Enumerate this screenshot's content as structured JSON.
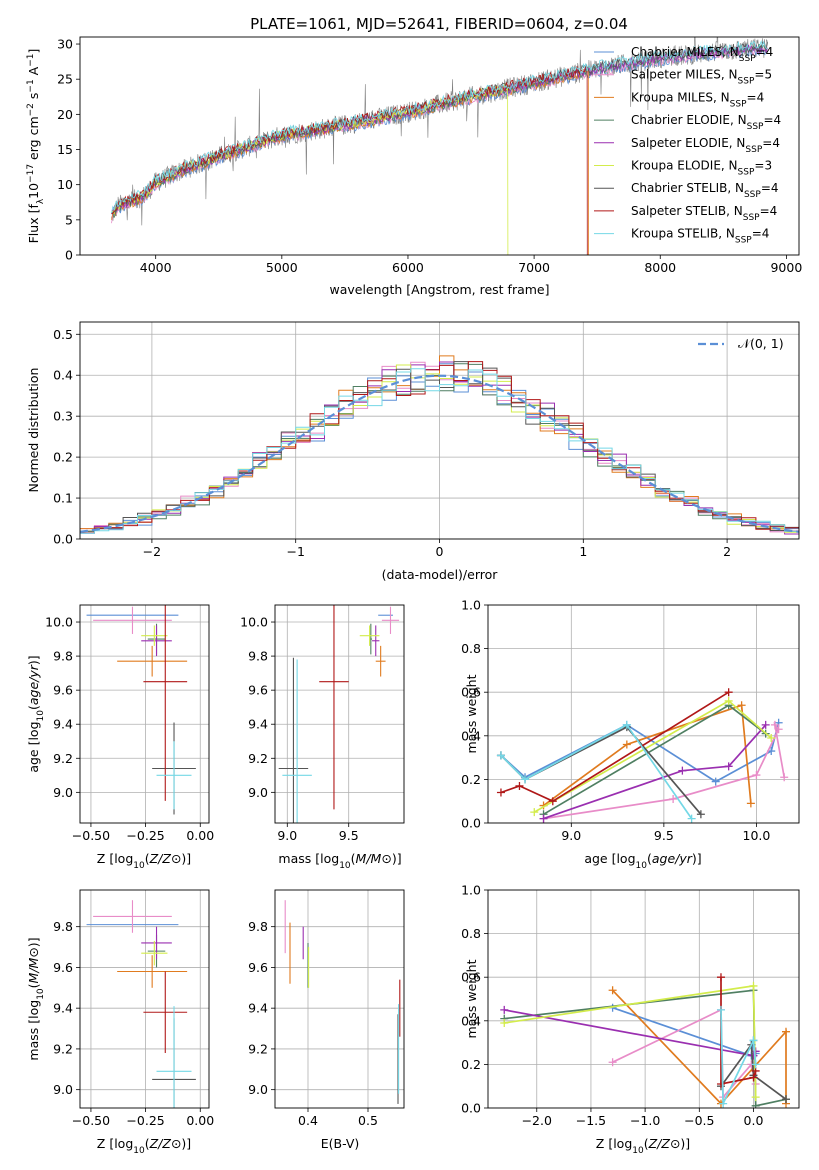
{
  "figure": {
    "title": "PLATE=1061, MJD=52641, FIBERID=0604, z=0.04"
  },
  "colors": {
    "chabrier_miles": "#5b8fd6",
    "salpeter_miles": "#e88cc8",
    "kroupa_miles": "#e07b1f",
    "chabrier_elodie": "#4f7f62",
    "salpeter_elodie": "#9a2fb0",
    "kroupa_elodie": "#d3ec4c",
    "chabrier_stelib": "#555555",
    "salpeter_stelib": "#b01818",
    "kroupa_stelib": "#74d8e6",
    "normal": "#5b8fd6",
    "grid": "#b0b0b0",
    "noisy": "#7f7f7f"
  },
  "chart_data": [
    {
      "type": "line",
      "xlabel": "wavelength [Angstrom, rest frame]",
      "ylabel": "Flux [fλ10^-17 erg cm^-2 s^-1 A^-1]",
      "xlim": [
        3400,
        9100
      ],
      "ylim": [
        0,
        31
      ],
      "xticks": [
        4000,
        5000,
        6000,
        7000,
        8000,
        9000
      ],
      "yticks": [
        0,
        5,
        10,
        15,
        20,
        25,
        30
      ],
      "grid": false,
      "legend_position": "top-right",
      "legend": [
        {
          "label": "Chabrier MILES, N",
          "sub": "SSP",
          "suffix": "=4",
          "color": "chabrier_miles"
        },
        {
          "label": "Salpeter MILES, N",
          "sub": "SSP",
          "suffix": "=5",
          "color": "salpeter_miles"
        },
        {
          "label": "Kroupa MILES, N",
          "sub": "SSP",
          "suffix": "=4",
          "color": "kroupa_miles"
        },
        {
          "label": "Chabrier ELODIE, N",
          "sub": "SSP",
          "suffix": "=4",
          "color": "chabrier_elodie"
        },
        {
          "label": "Salpeter ELODIE, N",
          "sub": "SSP",
          "suffix": "=4",
          "color": "salpeter_elodie"
        },
        {
          "label": "Kroupa ELODIE, N",
          "sub": "SSP",
          "suffix": "=3",
          "color": "kroupa_elodie"
        },
        {
          "label": "Chabrier STELIB, N",
          "sub": "SSP",
          "suffix": "=4",
          "color": "chabrier_stelib"
        },
        {
          "label": "Salpeter STELIB, N",
          "sub": "SSP",
          "suffix": "=4",
          "color": "salpeter_stelib"
        },
        {
          "label": "Kroupa STELIB, N",
          "sub": "SSP",
          "suffix": "=4",
          "color": "kroupa_stelib"
        }
      ],
      "continuum": {
        "x": [
          3650,
          3700,
          3800,
          3900,
          4000,
          4200,
          4500,
          5000,
          5500,
          6000,
          6500,
          7000,
          7500,
          8000,
          8500,
          8850
        ],
        "y": [
          5.5,
          7.0,
          7.6,
          8.3,
          10.3,
          12.0,
          14.0,
          17.0,
          18.5,
          20.3,
          22.5,
          24.5,
          26.5,
          28.0,
          29.0,
          29.5
        ]
      },
      "model_cuts": [
        {
          "series": "kroupa_elodie",
          "x_cut": 6790
        },
        {
          "series": "salpeter_stelib",
          "x_cut": 7420
        },
        {
          "series": "kroupa_miles",
          "x_cut": 7430
        }
      ]
    },
    {
      "type": "bar",
      "title": "",
      "xlabel": "(data-model)/error",
      "ylabel": "Normed distribution",
      "xlim": [
        -2.5,
        2.5
      ],
      "ylim": [
        0,
        0.53
      ],
      "xticks": [
        -2,
        -1,
        0,
        1,
        2
      ],
      "yticks": [
        0.0,
        0.1,
        0.2,
        0.3,
        0.4,
        0.5
      ],
      "grid": true,
      "legend_position": "top-right",
      "bin_width": 0.1,
      "gaussian_legend": "𝒩(0, 1)",
      "gaussian": {
        "mean": 0,
        "sigma": 1
      }
    },
    {
      "type": "scatter",
      "xlabel": "Z [log10(Z/Z⊙)]",
      "ylabel": "age  [log10(age/yr)]",
      "xlim": [
        -0.55,
        0.04
      ],
      "ylim": [
        8.82,
        10.1
      ],
      "xticks": [
        -0.5,
        -0.25,
        0.0
      ],
      "yticks": [
        9.0,
        9.2,
        9.4,
        9.6,
        9.8,
        10.0
      ],
      "points": [
        {
          "s": "chabrier_miles",
          "x": -0.31,
          "xerr": 0.21,
          "y": 10.04,
          "yerr": 0.0
        },
        {
          "s": "salpeter_miles",
          "x": -0.31,
          "xerr": 0.18,
          "y": 10.01,
          "yerr": 0.08
        },
        {
          "s": "kroupa_miles",
          "x": -0.22,
          "xerr": 0.16,
          "y": 9.77,
          "yerr": 0.09
        },
        {
          "s": "chabrier_elodie",
          "x": -0.2,
          "xerr": 0.04,
          "y": 9.9,
          "yerr": 0.09
        },
        {
          "s": "salpeter_elodie",
          "x": -0.2,
          "xerr": 0.07,
          "y": 9.89,
          "yerr": 0.09
        },
        {
          "s": "kroupa_elodie",
          "x": -0.21,
          "xerr": 0.06,
          "y": 9.92,
          "yerr": 0.06
        },
        {
          "s": "chabrier_stelib",
          "x": -0.12,
          "xerr": 0.1,
          "y": 9.14,
          "yerr": 0.27
        },
        {
          "s": "salpeter_stelib",
          "x": -0.16,
          "xerr": 0.1,
          "y": 9.65,
          "yerr": 0.7
        },
        {
          "s": "kroupa_stelib",
          "x": -0.12,
          "xerr": 0.08,
          "y": 9.1,
          "yerr": 0.2
        }
      ]
    },
    {
      "type": "scatter",
      "xlabel": "mass [log10(M/M⊙)]",
      "ylabel": "",
      "xlim": [
        8.9,
        9.95
      ],
      "ylim": [
        8.82,
        10.1
      ],
      "xticks": [
        9.0,
        9.5
      ],
      "yticks": [
        9.0,
        9.2,
        9.4,
        9.6,
        9.8,
        10.0
      ],
      "points": [
        {
          "s": "chabrier_miles",
          "x": 9.8,
          "xerr": 0.06,
          "y": 10.04,
          "yerr": 0.0
        },
        {
          "s": "salpeter_miles",
          "x": 9.84,
          "xerr": 0.07,
          "y": 10.01,
          "yerr": 0.08
        },
        {
          "s": "kroupa_miles",
          "x": 9.76,
          "xerr": 0.04,
          "y": 9.77,
          "yerr": 0.09
        },
        {
          "s": "chabrier_elodie",
          "x": 9.68,
          "xerr": 0.01,
          "y": 9.9,
          "yerr": 0.09
        },
        {
          "s": "salpeter_elodie",
          "x": 9.72,
          "xerr": 0.03,
          "y": 9.89,
          "yerr": 0.09
        },
        {
          "s": "kroupa_elodie",
          "x": 9.67,
          "xerr": 0.08,
          "y": 9.92,
          "yerr": 0.06
        },
        {
          "s": "chabrier_stelib",
          "x": 9.05,
          "xerr": 0.12,
          "y": 9.14,
          "yerr": 0.65
        },
        {
          "s": "salpeter_stelib",
          "x": 9.38,
          "xerr": 0.12,
          "y": 9.65,
          "yerr": 0.75
        },
        {
          "s": "kroupa_stelib",
          "x": 9.08,
          "xerr": 0.12,
          "y": 9.1,
          "yerr": 0.68
        }
      ]
    },
    {
      "type": "line",
      "xlabel": "age  [log10(age/yr)]",
      "ylabel": "mass weight",
      "xlim": [
        8.55,
        10.23
      ],
      "ylim": [
        0,
        1.0
      ],
      "xticks": [
        9.0,
        9.5,
        10.0
      ],
      "yticks": [
        0.0,
        0.2,
        0.4,
        0.6,
        0.8,
        1.0
      ],
      "grid": true,
      "series": [
        {
          "s": "chabrier_miles",
          "x": [
            8.62,
            8.75,
            9.3,
            9.78,
            10.08,
            10.12
          ],
          "y": [
            0.31,
            0.21,
            0.45,
            0.19,
            0.33,
            0.46
          ]
        },
        {
          "s": "salpeter_miles",
          "x": [
            8.85,
            9.55,
            10.0,
            10.12,
            10.1,
            10.15
          ],
          "y": [
            0.02,
            0.11,
            0.22,
            0.43,
            0.45,
            0.21
          ]
        },
        {
          "s": "kroupa_miles",
          "x": [
            8.85,
            9.3,
            9.92,
            9.97
          ],
          "y": [
            0.08,
            0.36,
            0.54,
            0.09
          ]
        },
        {
          "s": "chabrier_elodie",
          "x": [
            8.85,
            9.85,
            10.05
          ],
          "y": [
            0.04,
            0.54,
            0.41
          ]
        },
        {
          "s": "salpeter_elodie",
          "x": [
            8.85,
            9.6,
            9.85,
            10.05
          ],
          "y": [
            0.02,
            0.24,
            0.26,
            0.45
          ]
        },
        {
          "s": "kroupa_elodie",
          "x": [
            8.8,
            9.85,
            10.08
          ],
          "y": [
            0.05,
            0.56,
            0.39
          ]
        },
        {
          "s": "chabrier_stelib",
          "x": [
            8.62,
            8.75,
            9.3,
            9.7
          ],
          "y": [
            0.31,
            0.2,
            0.44,
            0.04
          ]
        },
        {
          "s": "salpeter_stelib",
          "x": [
            8.62,
            8.72,
            8.9,
            9.85
          ],
          "y": [
            0.14,
            0.17,
            0.1,
            0.6
          ]
        },
        {
          "s": "kroupa_stelib",
          "x": [
            8.62,
            8.75,
            9.3,
            9.65
          ],
          "y": [
            0.31,
            0.2,
            0.45,
            0.02
          ]
        }
      ]
    },
    {
      "type": "scatter",
      "xlabel": "Z [log10(Z/Z⊙)]",
      "ylabel": "mass [log10(M/M⊙)]",
      "xlim": [
        -0.55,
        0.04
      ],
      "ylim": [
        8.91,
        9.98
      ],
      "xticks": [
        -0.5,
        -0.25,
        0.0
      ],
      "yticks": [
        9.0,
        9.2,
        9.4,
        9.6,
        9.8
      ],
      "points": [
        {
          "s": "chabrier_miles",
          "x": -0.31,
          "xerr": 0.21,
          "y": 9.81,
          "yerr": 0.0
        },
        {
          "s": "salpeter_miles",
          "x": -0.31,
          "xerr": 0.18,
          "y": 9.85,
          "yerr": 0.08
        },
        {
          "s": "kroupa_miles",
          "x": -0.22,
          "xerr": 0.16,
          "y": 9.58,
          "yerr": 0.08
        },
        {
          "s": "chabrier_elodie",
          "x": -0.2,
          "xerr": 0.04,
          "y": 9.68,
          "yerr": 0.08
        },
        {
          "s": "salpeter_elodie",
          "x": -0.2,
          "xerr": 0.07,
          "y": 9.72,
          "yerr": 0.08
        },
        {
          "s": "kroupa_elodie",
          "x": -0.21,
          "xerr": 0.06,
          "y": 9.67,
          "yerr": 0.06
        },
        {
          "s": "chabrier_stelib",
          "x": -0.12,
          "xerr": 0.1,
          "y": 9.05,
          "yerr": 0.3
        },
        {
          "s": "salpeter_stelib",
          "x": -0.16,
          "xerr": 0.1,
          "y": 9.38,
          "yerr": 0.2
        },
        {
          "s": "kroupa_stelib",
          "x": -0.12,
          "xerr": 0.08,
          "y": 9.09,
          "yerr": 0.32
        }
      ]
    },
    {
      "type": "scatter",
      "xlabel": "E(B-V)",
      "ylabel": "",
      "xlim": [
        0.345,
        0.56
      ],
      "ylim": [
        8.91,
        9.98
      ],
      "xticks": [
        0.4,
        0.5
      ],
      "yticks": [
        9.0,
        9.2,
        9.4,
        9.6,
        9.8
      ],
      "points": [
        {
          "s": "salpeter_miles",
          "x": 0.362,
          "xerr": 0.0,
          "y": 9.8,
          "yerr": 0.13
        },
        {
          "s": "kroupa_miles",
          "x": 0.37,
          "xerr": 0.0,
          "y": 9.67,
          "yerr": 0.15
        },
        {
          "s": "salpeter_elodie",
          "x": 0.392,
          "xerr": 0.0,
          "y": 9.72,
          "yerr": 0.08
        },
        {
          "s": "chabrier_elodie",
          "x": 0.4,
          "xerr": 0.0,
          "y": 9.61,
          "yerr": 0.11
        },
        {
          "s": "kroupa_elodie",
          "x": 0.401,
          "xerr": 0.0,
          "y": 9.6,
          "yerr": 0.1
        },
        {
          "s": "salpeter_stelib",
          "x": 0.553,
          "xerr": 0.0,
          "y": 9.4,
          "yerr": 0.14
        },
        {
          "s": "chabrier_stelib",
          "x": 0.55,
          "xerr": 0.0,
          "y": 9.15,
          "yerr": 0.22
        },
        {
          "s": "kroupa_stelib",
          "x": 0.551,
          "xerr": 0.0,
          "y": 9.2,
          "yerr": 0.22
        }
      ]
    },
    {
      "type": "line",
      "xlabel": "Z [log10(Z/Z⊙)]",
      "ylabel": "mass weight",
      "xlim": [
        -2.45,
        0.42
      ],
      "ylim": [
        0,
        1.0
      ],
      "xticks": [
        -2.0,
        -1.5,
        -1.0,
        -0.5,
        0.0
      ],
      "yticks": [
        0.0,
        0.2,
        0.4,
        0.6,
        0.8,
        1.0
      ],
      "grid": true,
      "series": [
        {
          "s": "chabrier_miles",
          "x": [
            -1.3,
            -0.02,
            0.0,
            0.02
          ],
          "y": [
            0.46,
            0.24,
            0.31,
            0.25
          ]
        },
        {
          "s": "salpeter_miles",
          "x": [
            -1.3,
            -0.3,
            -0.28,
            -0.02,
            0.02
          ],
          "y": [
            0.21,
            0.45,
            0.05,
            0.2,
            0.11
          ]
        },
        {
          "s": "kroupa_miles",
          "x": [
            -1.3,
            -0.3,
            0.3,
            0.3
          ],
          "y": [
            0.54,
            0.02,
            0.35,
            0.02
          ]
        },
        {
          "s": "chabrier_elodie",
          "x": [
            -2.3,
            0.0,
            0.02,
            0.3
          ],
          "y": [
            0.41,
            0.54,
            0.01,
            0.04
          ]
        },
        {
          "s": "salpeter_elodie",
          "x": [
            -2.3,
            0.0,
            0.02
          ],
          "y": [
            0.45,
            0.24,
            0.26
          ]
        },
        {
          "s": "kroupa_elodie",
          "x": [
            -2.3,
            0.0,
            0.02
          ],
          "y": [
            0.39,
            0.56,
            0.05
          ]
        },
        {
          "s": "chabrier_stelib",
          "x": [
            -0.3,
            -0.02,
            0.0,
            0.3
          ],
          "y": [
            0.1,
            0.29,
            0.15,
            0.04
          ]
        },
        {
          "s": "salpeter_stelib",
          "x": [
            -0.3,
            -0.3,
            0.0,
            0.02
          ],
          "y": [
            0.6,
            0.11,
            0.14,
            0.17
          ]
        },
        {
          "s": "kroupa_stelib",
          "x": [
            -0.3,
            -0.28,
            0.0,
            0.02
          ],
          "y": [
            0.45,
            0.02,
            0.31,
            0.2
          ]
        }
      ]
    }
  ]
}
